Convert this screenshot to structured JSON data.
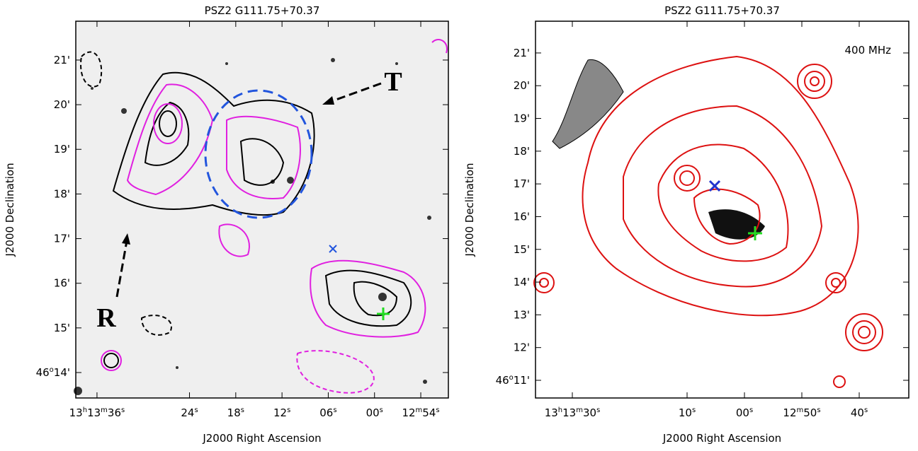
{
  "chart_data": [
    {
      "type": "contour",
      "title": "PSZ2 G111.75+70.37",
      "x_label": "J2000 Right Ascension",
      "y_label": "J2000 Declination",
      "xlim": [
        98.75,
        50.42
      ],
      "ylim": [
        13.43,
        21.87
      ],
      "xticks": [
        {
          "value": 96,
          "label": "13h13m36s"
        },
        {
          "value": 84,
          "label": "24s"
        },
        {
          "value": 78,
          "label": "18s"
        },
        {
          "value": 72,
          "label": "12s"
        },
        {
          "value": 66,
          "label": "06s"
        },
        {
          "value": 60,
          "label": "00s"
        },
        {
          "value": 54,
          "label": "12m54s"
        }
      ],
      "yticks": [
        {
          "value": 21,
          "label": "21'"
        },
        {
          "value": 20,
          "label": "20'"
        },
        {
          "value": 19,
          "label": "19'"
        },
        {
          "value": 18,
          "label": "18'"
        },
        {
          "value": 17,
          "label": "17'"
        },
        {
          "value": 16,
          "label": "16'"
        },
        {
          "value": 15,
          "label": "15'"
        },
        {
          "value": 14,
          "label": "46o14'"
        }
      ],
      "annotations": [
        "T",
        "R"
      ]
    },
    {
      "type": "contour",
      "title": "PSZ2 G111.75+70.37",
      "x_label": "J2000 Right Ascension",
      "y_label": "J2000 Declination",
      "xlim": [
        96.42,
        31.36
      ],
      "ylim": [
        10.46,
        21.97
      ],
      "xticks": [
        {
          "value": 90,
          "label": "13h13m30s"
        },
        {
          "value": 70,
          "label": "10s"
        },
        {
          "value": 60,
          "label": "00s"
        },
        {
          "value": 50,
          "label": "12m50s"
        },
        {
          "value": 40,
          "label": "40s"
        }
      ],
      "yticks": [
        {
          "value": 21,
          "label": "21'"
        },
        {
          "value": 20,
          "label": "20'"
        },
        {
          "value": 19,
          "label": "19'"
        },
        {
          "value": 18,
          "label": "18'"
        },
        {
          "value": 17,
          "label": "17'"
        },
        {
          "value": 16,
          "label": "16'"
        },
        {
          "value": 15,
          "label": "15'"
        },
        {
          "value": 14,
          "label": "14'"
        },
        {
          "value": 13,
          "label": "13'"
        },
        {
          "value": 12,
          "label": "12'"
        },
        {
          "value": 11,
          "label": "46o11'"
        }
      ],
      "annotations": [
        "400 MHz"
      ]
    }
  ]
}
